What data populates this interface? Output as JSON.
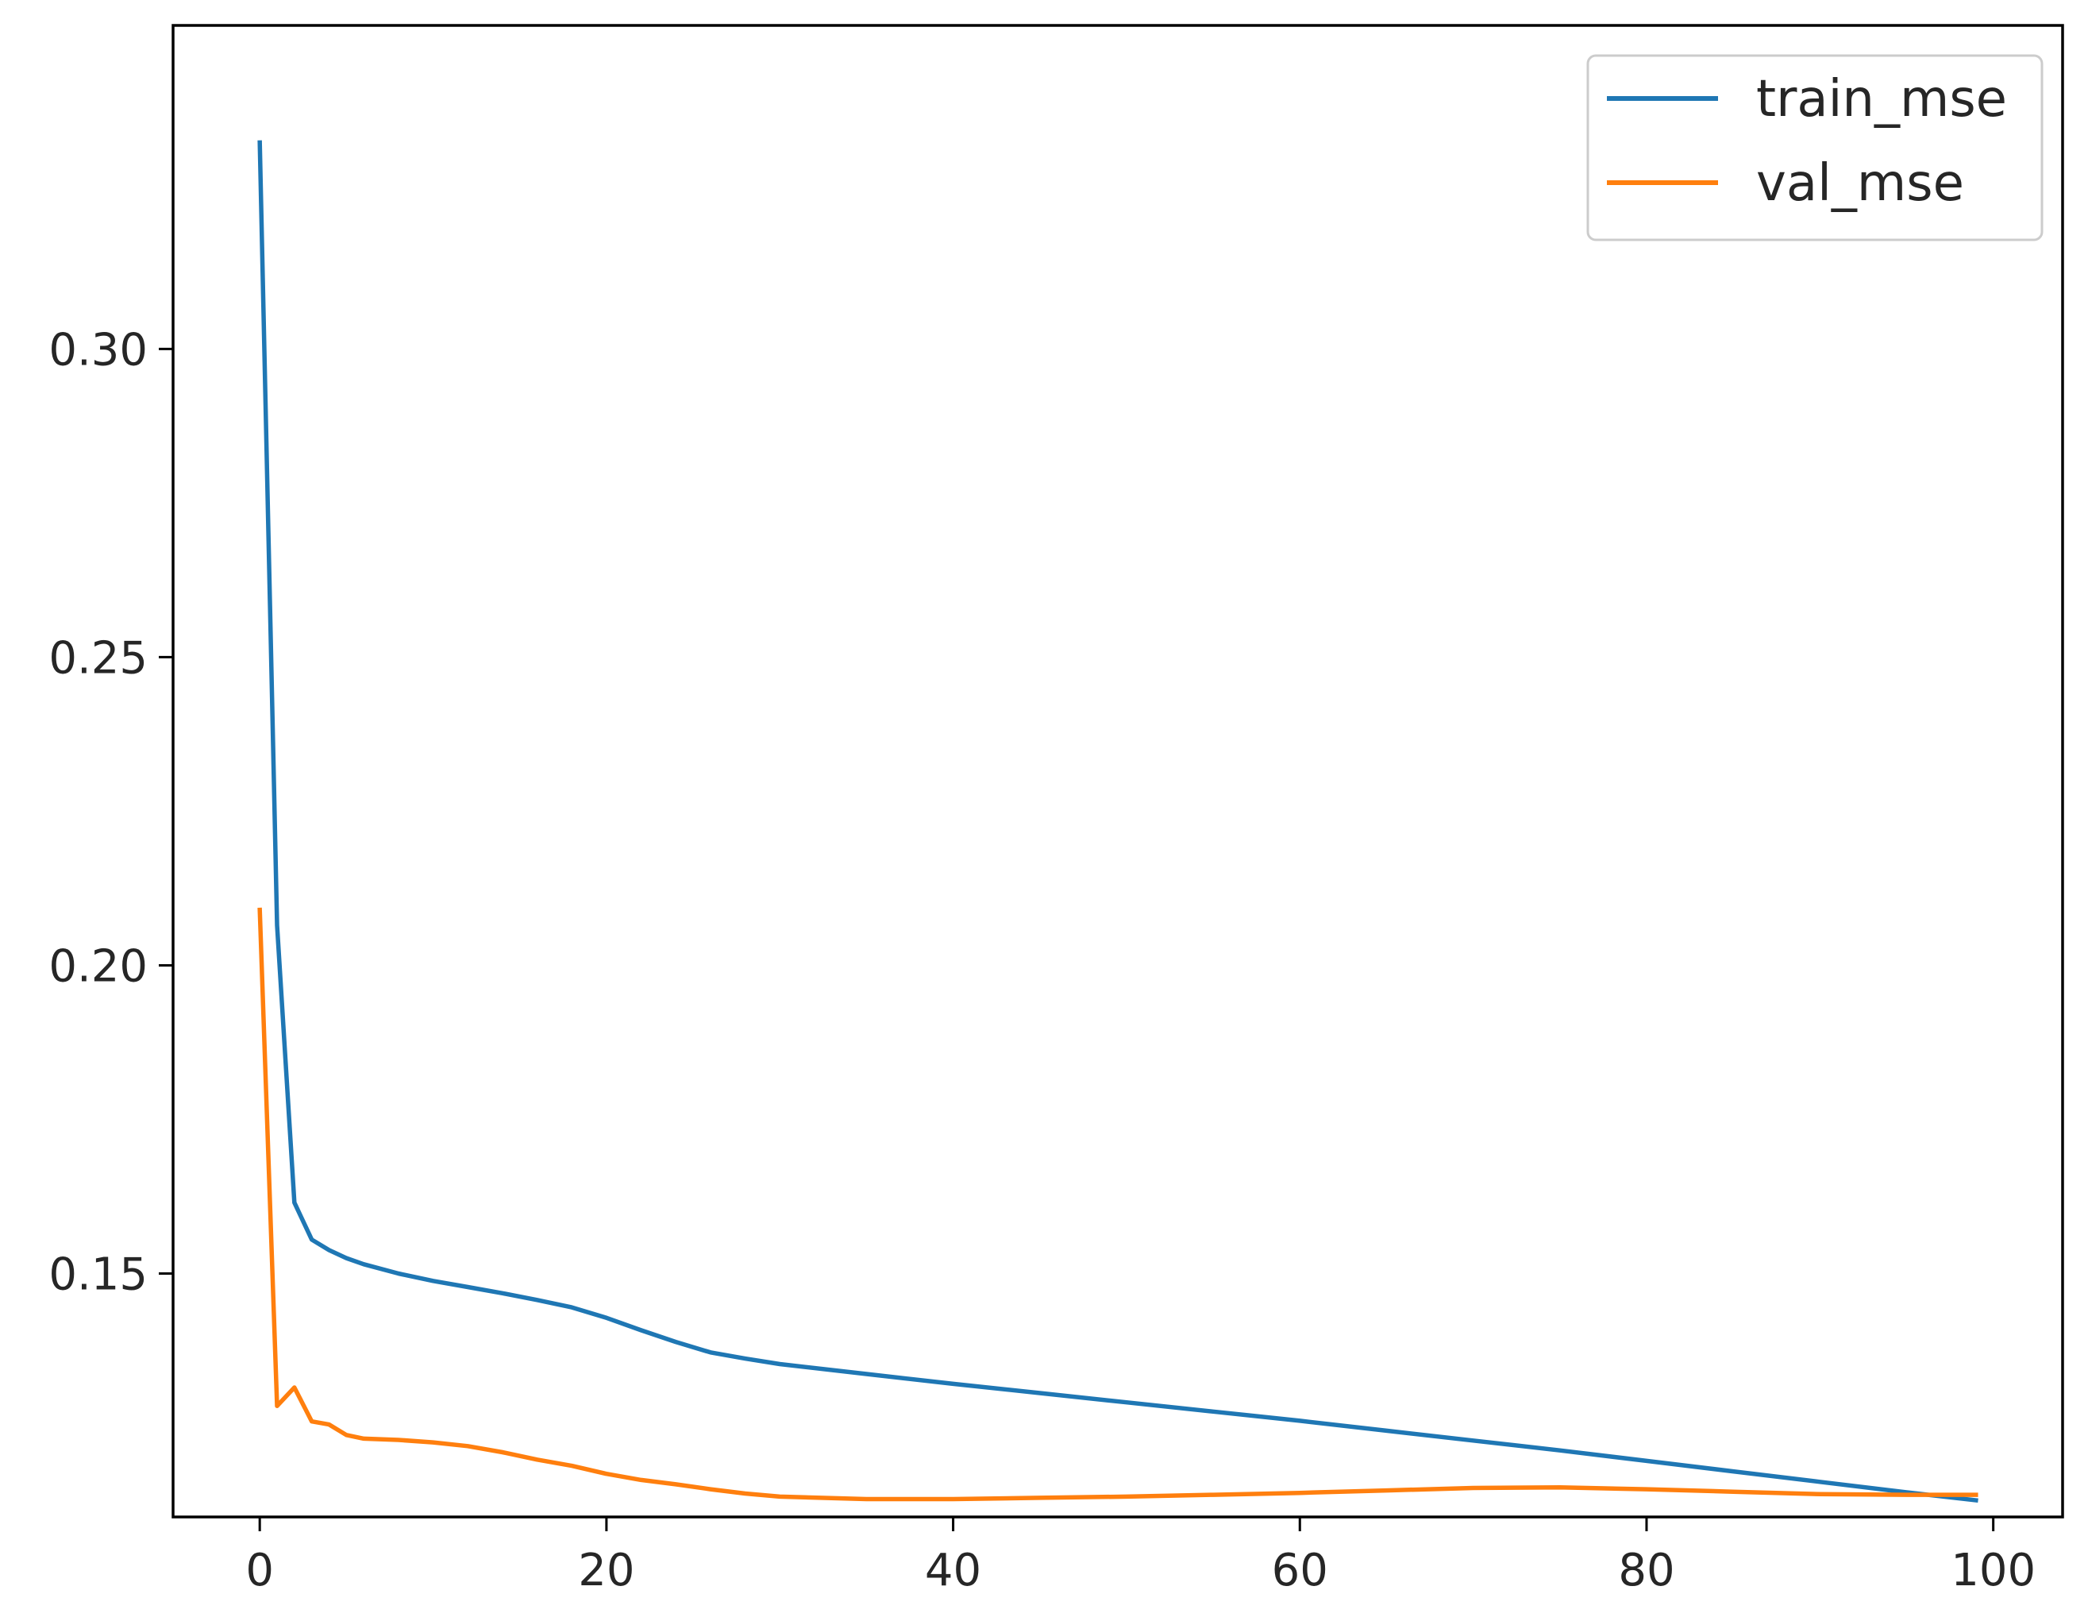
{
  "chart_data": {
    "type": "line",
    "title": "",
    "xlabel": "",
    "ylabel": "",
    "xlim": [
      -5,
      104
    ],
    "ylim": [
      0.1105,
      0.3525
    ],
    "xticks": [
      0,
      20,
      40,
      60,
      80,
      100
    ],
    "yticks": [
      0.15,
      0.2,
      0.25,
      0.3
    ],
    "xtick_labels": [
      "0",
      "20",
      "40",
      "60",
      "80",
      "100"
    ],
    "ytick_labels": [
      "0.15",
      "0.20",
      "0.25",
      "0.30"
    ],
    "grid": false,
    "legend": {
      "position": "top-right"
    },
    "series": [
      {
        "name": "train_mse",
        "color": "#1f77b4",
        "x": [
          0,
          1,
          2,
          3,
          4,
          5,
          6,
          8,
          10,
          12,
          14,
          16,
          18,
          20,
          22,
          24,
          26,
          28,
          30,
          35,
          40,
          45,
          50,
          55,
          60,
          65,
          70,
          75,
          80,
          85,
          90,
          95,
          99
        ],
        "y": [
          0.3335,
          0.2065,
          0.1615,
          0.1555,
          0.1538,
          0.1525,
          0.1515,
          0.15,
          0.1488,
          0.1478,
          0.1468,
          0.1457,
          0.1445,
          0.1428,
          0.1408,
          0.1389,
          0.1372,
          0.1362,
          0.1353,
          0.1337,
          0.1321,
          0.1306,
          0.1291,
          0.1276,
          0.1261,
          0.1245,
          0.1229,
          0.1213,
          0.1196,
          0.1179,
          0.1162,
          0.1145,
          0.1132
        ]
      },
      {
        "name": "val_mse",
        "color": "#ff7f0e",
        "x": [
          0,
          1,
          2,
          3,
          4,
          5,
          6,
          8,
          10,
          12,
          14,
          16,
          18,
          20,
          22,
          24,
          26,
          28,
          30,
          35,
          40,
          45,
          50,
          55,
          60,
          65,
          70,
          75,
          80,
          85,
          90,
          95,
          99
        ],
        "y": [
          0.209,
          0.1285,
          0.1315,
          0.126,
          0.1255,
          0.1238,
          0.1232,
          0.123,
          0.1226,
          0.122,
          0.121,
          0.1198,
          0.1188,
          0.1175,
          0.1165,
          0.1158,
          0.115,
          0.1143,
          0.1138,
          0.1134,
          0.1134,
          0.1136,
          0.1138,
          0.1141,
          0.1144,
          0.1148,
          0.1152,
          0.1153,
          0.115,
          0.1146,
          0.1142,
          0.1141,
          0.1141
        ]
      }
    ]
  }
}
